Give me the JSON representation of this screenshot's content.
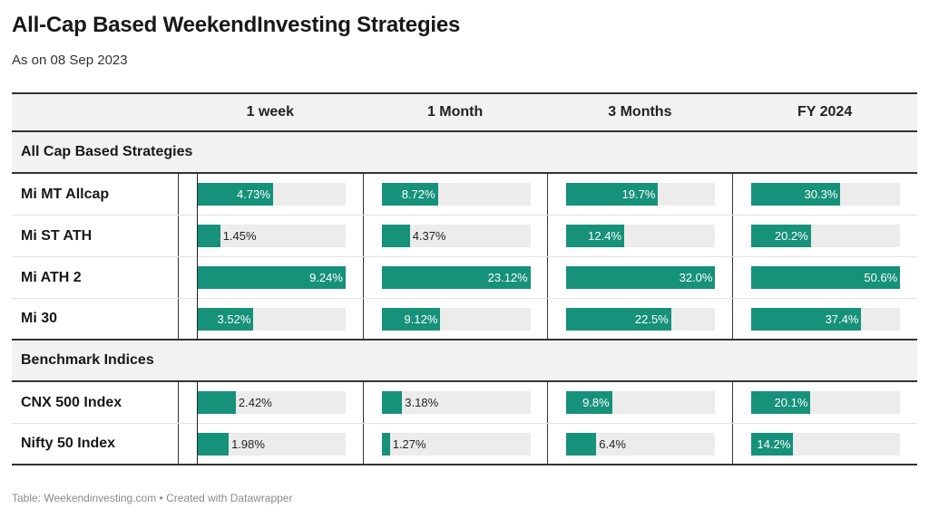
{
  "title": "All-Cap Based WeekendInvesting Strategies",
  "subtitle": "As on 08 Sep 2023",
  "footer": "Table: Weekendinvesting.com • Created with Datawrapper",
  "colors": {
    "bar": "#16917a",
    "track": "#ececec",
    "header_bg": "#f2f2f2"
  },
  "chart_data": {
    "type": "table",
    "columns": [
      "",
      "1 week",
      "1 Month",
      "3 Months",
      "FY 2024"
    ],
    "column_max": [
      9.24,
      23.12,
      32.0,
      50.6
    ],
    "groups": [
      {
        "name": "All Cap Based Strategies",
        "rows": [
          {
            "name": "Mi MT Allcap",
            "values": [
              4.73,
              8.72,
              19.7,
              30.3
            ],
            "labels": [
              "4.73%",
              "8.72%",
              "19.7%",
              "30.3%"
            ]
          },
          {
            "name": "Mi ST ATH",
            "values": [
              1.45,
              4.37,
              12.4,
              20.2
            ],
            "labels": [
              "1.45%",
              "4.37%",
              "12.4%",
              "20.2%"
            ]
          },
          {
            "name": "Mi ATH 2",
            "values": [
              9.24,
              23.12,
              32.0,
              50.6
            ],
            "labels": [
              "9.24%",
              "23.12%",
              "32.0%",
              "50.6%"
            ]
          },
          {
            "name": "Mi 30",
            "values": [
              3.52,
              9.12,
              22.5,
              37.4
            ],
            "labels": [
              "3.52%",
              "9.12%",
              "22.5%",
              "37.4%"
            ]
          }
        ]
      },
      {
        "name": "Benchmark Indices",
        "rows": [
          {
            "name": "CNX 500 Index",
            "values": [
              2.42,
              3.18,
              9.8,
              20.1
            ],
            "labels": [
              "2.42%",
              "3.18%",
              "9.8%",
              "20.1%"
            ]
          },
          {
            "name": "Nifty 50 Index",
            "values": [
              1.98,
              1.27,
              6.4,
              14.2
            ],
            "labels": [
              "1.98%",
              "1.27%",
              "6.4%",
              "14.2%"
            ]
          }
        ]
      }
    ]
  }
}
